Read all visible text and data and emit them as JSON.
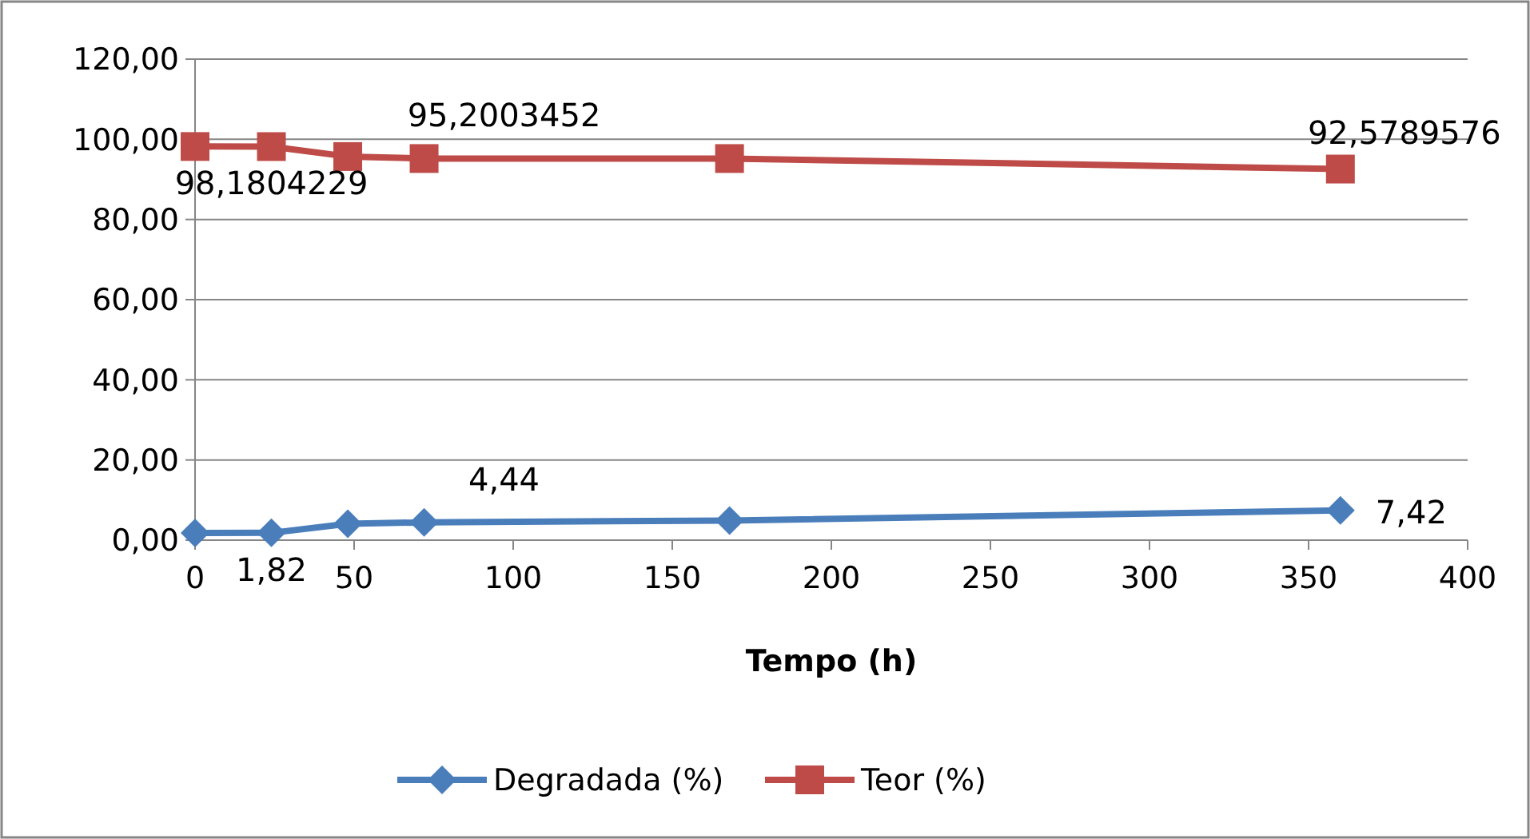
{
  "chart_data": {
    "type": "line",
    "xlabel": "Tempo (h)",
    "x": [
      0,
      24,
      48,
      72,
      168,
      360
    ],
    "xlim": [
      0,
      400
    ],
    "xticks": [
      0,
      50,
      100,
      150,
      200,
      250,
      300,
      350,
      400
    ],
    "ylim": [
      0,
      120
    ],
    "yticks": [
      {
        "value": 0,
        "label": "0,00"
      },
      {
        "value": 20,
        "label": "20,00"
      },
      {
        "value": 40,
        "label": "40,00"
      },
      {
        "value": 60,
        "label": "60,00"
      },
      {
        "value": 80,
        "label": "80,00"
      },
      {
        "value": 100,
        "label": "100,00"
      },
      {
        "value": 120,
        "label": "120,00"
      }
    ],
    "grid": "y",
    "legend": "bottom",
    "line_style": "solid",
    "series": [
      {
        "name": "Degradada (%)",
        "color": "#4a7ebb",
        "marker": "diamond",
        "values": [
          1.8,
          1.82,
          4.1,
          4.44,
          4.9,
          7.42
        ],
        "value_labels": [
          null,
          "1,82",
          null,
          "4,44",
          null,
          "7,42"
        ]
      },
      {
        "name": "Teor (%)",
        "color": "#be4b48",
        "marker": "square",
        "values": [
          98.2,
          98.1804229,
          95.7,
          95.2003452,
          95.2,
          92.5789576
        ],
        "value_labels": [
          null,
          "98,1804229",
          null,
          "95,2003452",
          null,
          "92,5789576"
        ]
      }
    ]
  }
}
